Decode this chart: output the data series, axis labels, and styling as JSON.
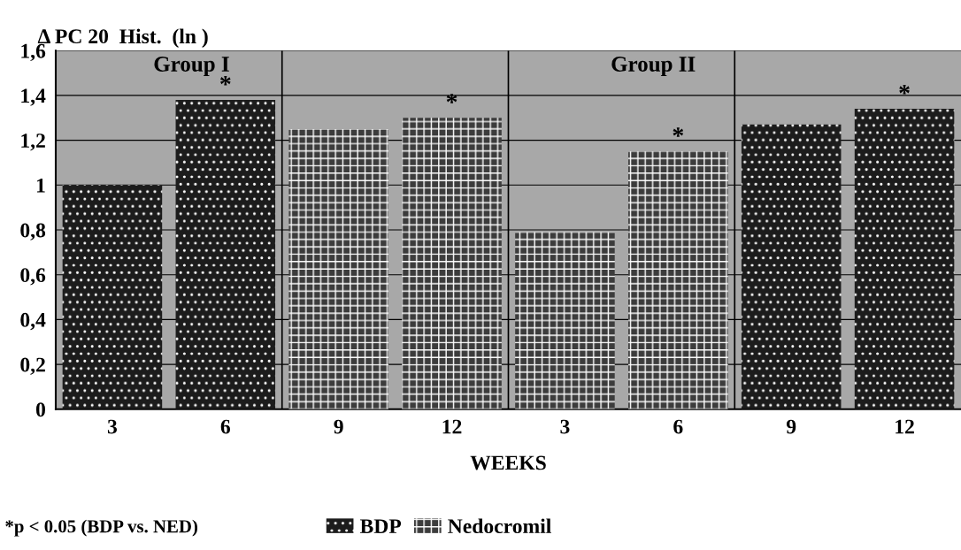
{
  "chart_data": {
    "type": "bar",
    "title": "Δ PC 20  Hist.  (ln )",
    "xlabel": "WEEKS",
    "categories": [
      "3",
      "6",
      "9",
      "12",
      "3",
      "6",
      "9",
      "12"
    ],
    "series": [
      {
        "name": "BDP",
        "color": "#1c1c1c",
        "values": [
          1.0,
          1.38,
          null,
          null,
          null,
          null,
          1.27,
          1.34
        ],
        "value_labels": [
          null,
          "*",
          null,
          null,
          null,
          null,
          null,
          "*"
        ]
      },
      {
        "name": "Nedocromil",
        "color": "#3c3c3c",
        "values": [
          null,
          null,
          1.25,
          1.3,
          0.79,
          1.15,
          null,
          null
        ],
        "value_labels": [
          null,
          null,
          null,
          "*",
          null,
          "*",
          null,
          null
        ]
      }
    ],
    "ylim": [
      0,
      1.6
    ],
    "yticks": [
      0,
      {
        "value": 0.2,
        "label": "0,2"
      },
      {
        "value": 0.4,
        "label": "0,4"
      },
      {
        "value": 0.6,
        "label": "0,6"
      },
      {
        "value": 0.8,
        "label": "0,8"
      },
      1,
      {
        "value": 1.2,
        "label": "1,2"
      },
      {
        "value": 1.4,
        "label": "1,4"
      },
      {
        "value": 1.6,
        "label": "1,6"
      }
    ],
    "annotations": [
      "Group I",
      "Group II",
      "*p < 0.05 (BDP vs. NED)"
    ],
    "grid": "y",
    "legend": "bottom"
  }
}
